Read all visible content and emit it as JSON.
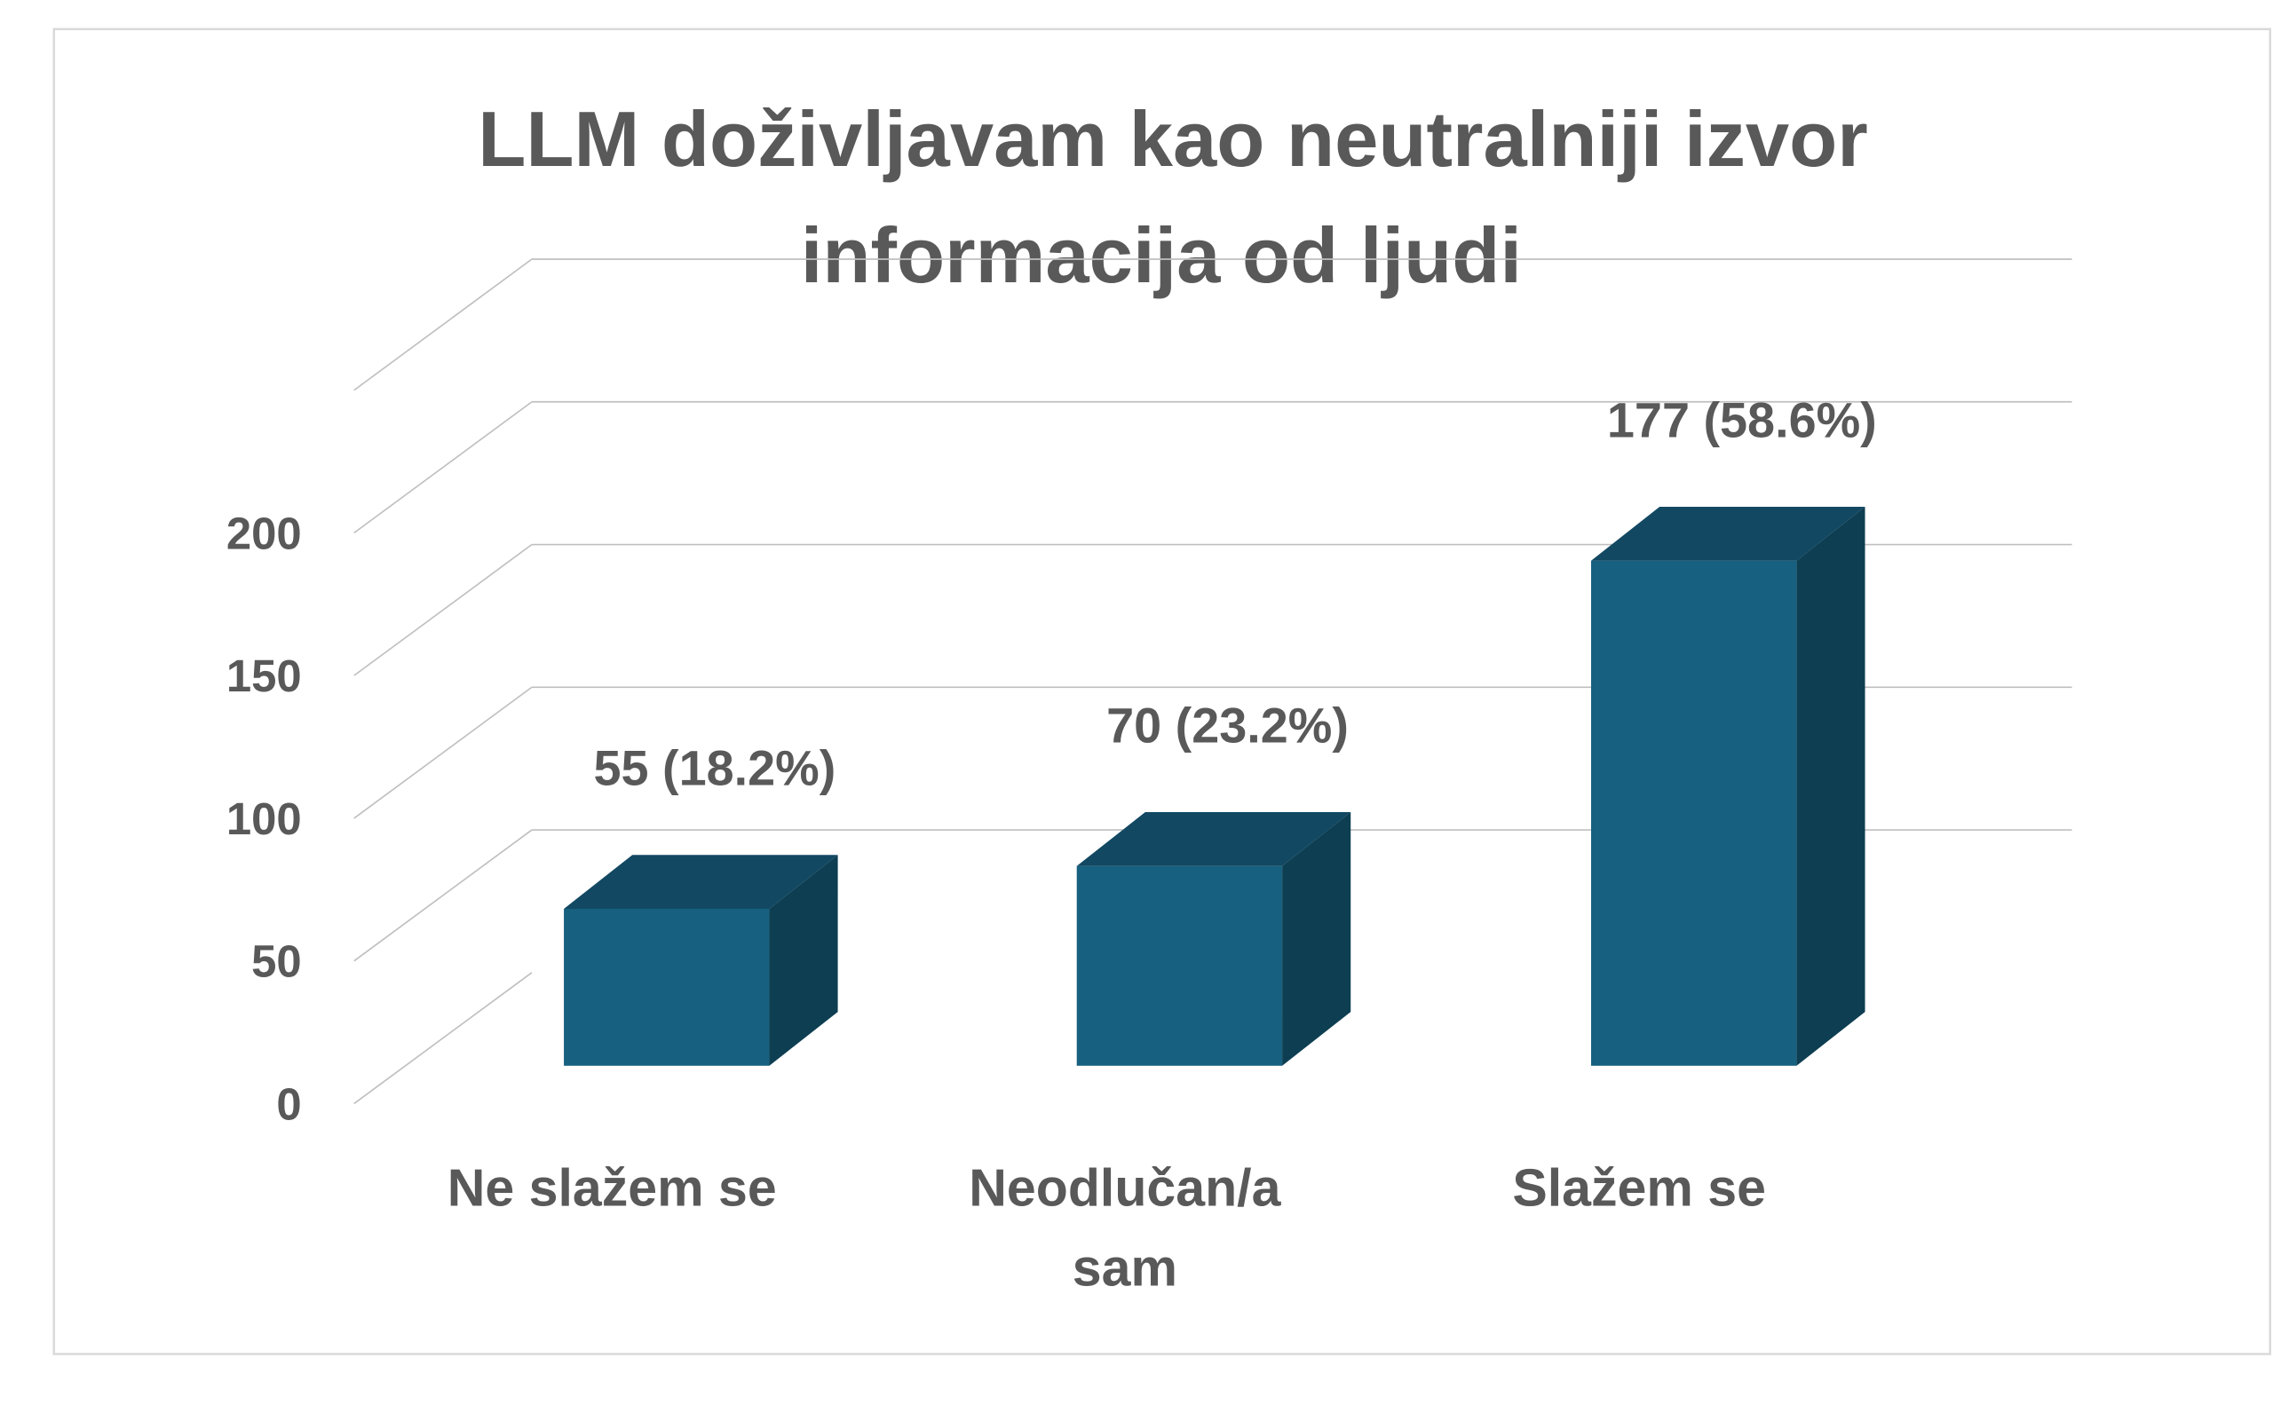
{
  "chart_data": {
    "type": "bar",
    "style": "3d-column",
    "title": [
      "LLM doživljavam kao neutralniji izvor",
      "informacija od ljudi"
    ],
    "categories": [
      [
        "Ne slažem se"
      ],
      [
        "Neodlučan/a",
        "sam"
      ],
      [
        "Slažem se"
      ]
    ],
    "values": [
      55,
      70,
      177
    ],
    "data_labels": [
      "55 (18.2%)",
      "70 (23.2%)",
      "177 (58.6%)"
    ],
    "yticks": [
      "0",
      "50",
      "100",
      "150",
      "200"
    ],
    "ylim": [
      0,
      250
    ],
    "xlabel": "",
    "ylabel": "",
    "grid": true,
    "legend": "none",
    "colors": {
      "bar_front": "#17607f",
      "bar_top": "#124862",
      "bar_side": "#0d3e52",
      "grid": "#bfbfbf",
      "text": "#595959"
    }
  }
}
